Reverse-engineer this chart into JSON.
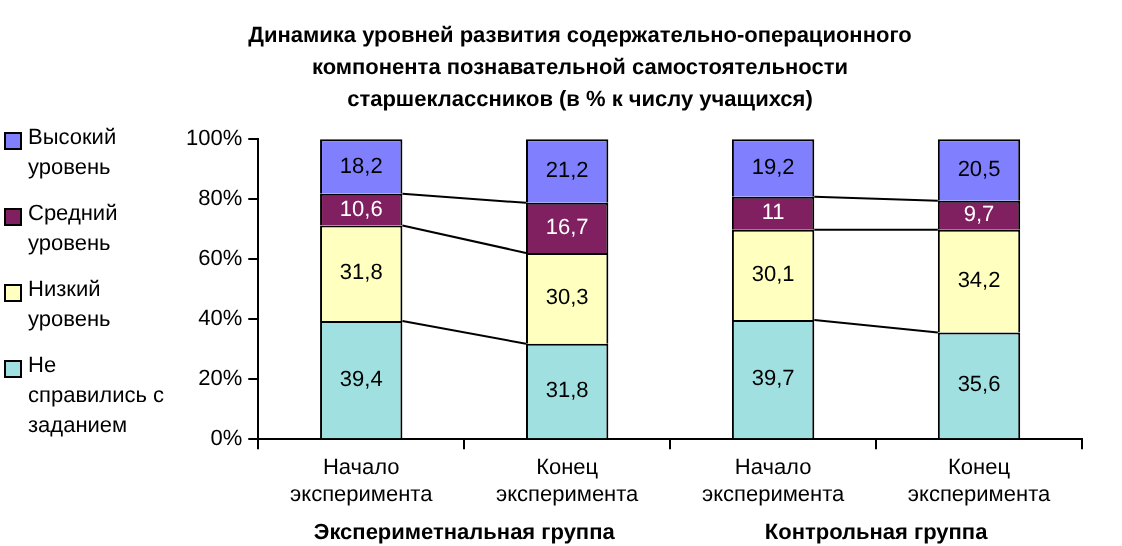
{
  "chart_data": {
    "type": "bar",
    "stacked": true,
    "title": "Динамика уровней развития содержательно-операционного компонента познавательной самостоятельности старшеклассников (в % к числу учащихся)",
    "categories": [
      "Начало эксперимента",
      "Конец эксперимента",
      "Начало эксперимента",
      "Конец эксперимента"
    ],
    "annotations": [
      "Экспериметнальная группа",
      "Контрольная группа"
    ],
    "series": [
      {
        "name": "Не справились с заданием",
        "color": "#a0e0e0",
        "values": [
          39.4,
          31.8,
          39.7,
          35.6
        ],
        "value_labels": [
          "39,4",
          "31,8",
          "39,7",
          "35,6"
        ]
      },
      {
        "name": "Низкий уровень",
        "color": "#ffffc0",
        "values": [
          31.8,
          30.3,
          30.1,
          34.2
        ],
        "value_labels": [
          "31,8",
          "30,3",
          "30,1",
          "34,2"
        ]
      },
      {
        "name": "Средний уровень",
        "color": "#802060",
        "values": [
          10.6,
          16.7,
          11,
          9.7
        ],
        "value_labels": [
          "10,6",
          "16,7",
          "11",
          "9,7"
        ]
      },
      {
        "name": "Высокий уровень",
        "color": "#8080ff",
        "values": [
          18.2,
          21.2,
          19.2,
          20.5
        ],
        "value_labels": [
          "18,2",
          "21,2",
          "19,2",
          "20,5"
        ]
      }
    ],
    "ylim": [
      0,
      100
    ],
    "yticks": [
      {
        "value": 0,
        "label": "0%"
      },
      {
        "value": 20,
        "label": "20%"
      },
      {
        "value": 40,
        "label": "40%"
      },
      {
        "value": 60,
        "label": "60%"
      },
      {
        "value": 80,
        "label": "80%"
      },
      {
        "value": 100,
        "label": "100%"
      }
    ],
    "grid": false,
    "legend": "left"
  }
}
